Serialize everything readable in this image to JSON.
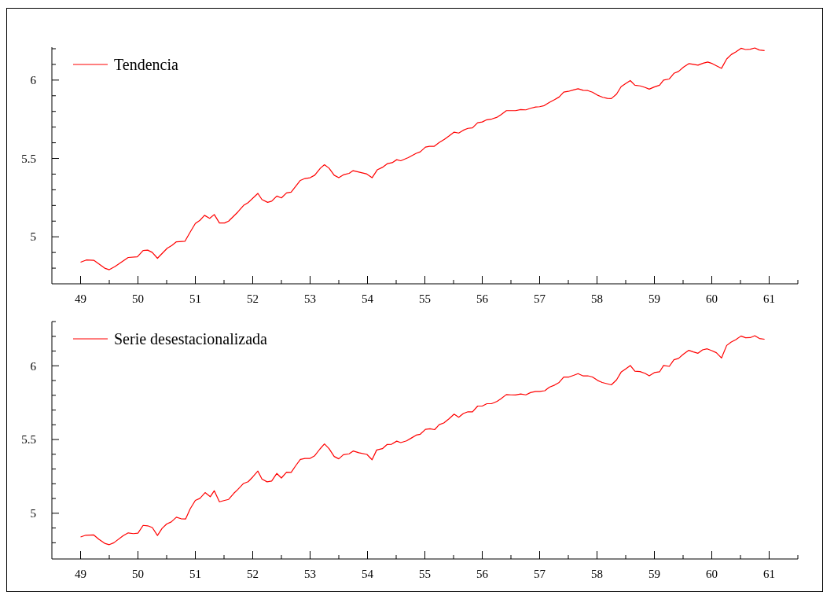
{
  "chart_data": [
    {
      "type": "line",
      "legend": "top left",
      "xlim": [
        48.5,
        61.5
      ],
      "ylim": [
        4.7,
        6.21
      ],
      "xticks": [
        49,
        {
          "value": 49.5,
          "label": null
        },
        50,
        {
          "value": 50.5,
          "label": null
        },
        51,
        {
          "value": 51.5,
          "label": null
        },
        52,
        {
          "value": 52.5,
          "label": null
        },
        53,
        {
          "value": 53.5,
          "label": null
        },
        54,
        {
          "value": 54.5,
          "label": null
        },
        55,
        {
          "value": 55.5,
          "label": null
        },
        56,
        {
          "value": 56.5,
          "label": null
        },
        57,
        {
          "value": 57.5,
          "label": null
        },
        58,
        {
          "value": 58.5,
          "label": null
        },
        59,
        {
          "value": 59.5,
          "label": null
        },
        60,
        {
          "value": 60.5,
          "label": null
        },
        61,
        {
          "value": 61.5,
          "label": null
        }
      ],
      "yticks": [
        {
          "value": 4.8,
          "label": null
        },
        {
          "value": 4.9,
          "label": null
        },
        5,
        {
          "value": 5.1,
          "label": null
        },
        {
          "value": 5.2,
          "label": null
        },
        {
          "value": 5.3,
          "label": null
        },
        {
          "value": 5.4,
          "label": null
        },
        5.5,
        {
          "value": 5.6,
          "label": null
        },
        {
          "value": 5.7,
          "label": null
        },
        {
          "value": 5.8,
          "label": null
        },
        {
          "value": 5.9,
          "label": null
        },
        6,
        {
          "value": 6.1,
          "label": null
        },
        {
          "value": 6.2,
          "label": null
        }
      ],
      "x": [
        49.0,
        49.1,
        49.23,
        49.42,
        49.5,
        49.6,
        49.83,
        49.99,
        50.09,
        50.17,
        50.25,
        50.34,
        50.51,
        50.59,
        50.67,
        50.82,
        50.91,
        51.0,
        51.08,
        51.16,
        51.25,
        51.33,
        51.42,
        51.51,
        51.58,
        51.74,
        51.84,
        51.92,
        52.09,
        52.16,
        52.26,
        52.33,
        52.42,
        52.5,
        52.59,
        52.67,
        52.83,
        52.91,
        53.0,
        53.08,
        53.18,
        53.25,
        53.33,
        53.42,
        53.5,
        53.59,
        53.68,
        53.75,
        53.98,
        54.08,
        54.17,
        54.26,
        54.35,
        54.43,
        54.51,
        54.58,
        54.71,
        54.85,
        54.92,
        55.01,
        55.08,
        55.16,
        55.25,
        55.34,
        55.42,
        55.51,
        55.59,
        55.67,
        55.75,
        55.83,
        55.92,
        56.0,
        56.08,
        56.17,
        56.26,
        56.33,
        56.42,
        56.58,
        56.67,
        56.76,
        56.84,
        56.93,
        57.0,
        57.08,
        57.17,
        57.26,
        57.34,
        57.42,
        57.5,
        57.59,
        57.67,
        57.76,
        57.84,
        57.92,
        58.02,
        58.1,
        58.18,
        58.25,
        58.34,
        58.42,
        58.5,
        58.58,
        58.66,
        58.75,
        58.84,
        58.91,
        58.99,
        59.09,
        59.16,
        59.26,
        59.34,
        59.42,
        59.51,
        59.6,
        59.68,
        59.76,
        59.85,
        59.93,
        60.01,
        60.09,
        60.17,
        60.26,
        60.34,
        60.42,
        60.51,
        60.59,
        60.67,
        60.75,
        60.83,
        60.92
      ],
      "series": [
        {
          "name": "Tendencia",
          "color": "#ff0000",
          "values": [
            4.838,
            4.852,
            4.85,
            4.8,
            4.79,
            4.81,
            4.868,
            4.872,
            4.913,
            4.915,
            4.9,
            4.863,
            4.927,
            4.945,
            4.968,
            4.972,
            5.03,
            5.085,
            5.105,
            5.137,
            5.118,
            5.142,
            5.088,
            5.088,
            5.1,
            5.158,
            5.2,
            5.218,
            5.277,
            5.238,
            5.22,
            5.227,
            5.26,
            5.248,
            5.28,
            5.285,
            5.36,
            5.372,
            5.377,
            5.393,
            5.438,
            5.46,
            5.438,
            5.393,
            5.377,
            5.397,
            5.405,
            5.422,
            5.402,
            5.377,
            5.427,
            5.443,
            5.467,
            5.473,
            5.492,
            5.485,
            5.505,
            5.533,
            5.542,
            5.572,
            5.577,
            5.577,
            5.602,
            5.622,
            5.643,
            5.668,
            5.662,
            5.68,
            5.692,
            5.695,
            5.728,
            5.733,
            5.747,
            5.752,
            5.763,
            5.78,
            5.805,
            5.805,
            5.812,
            5.81,
            5.82,
            5.828,
            5.83,
            5.837,
            5.858,
            5.875,
            5.892,
            5.923,
            5.928,
            5.937,
            5.945,
            5.935,
            5.933,
            5.923,
            5.902,
            5.89,
            5.883,
            5.882,
            5.91,
            5.958,
            5.978,
            5.997,
            5.967,
            5.963,
            5.953,
            5.942,
            5.955,
            5.967,
            6.0,
            6.007,
            6.043,
            6.055,
            6.083,
            6.105,
            6.1,
            6.095,
            6.108,
            6.115,
            6.105,
            6.09,
            6.075,
            6.135,
            6.163,
            6.18,
            6.203,
            6.195,
            6.197,
            6.205,
            6.192,
            6.188
          ]
        }
      ]
    },
    {
      "type": "line",
      "legend": "top left",
      "xlim": [
        48.5,
        61.5
      ],
      "ylim": [
        4.69,
        6.3
      ],
      "xticks": [
        49,
        {
          "value": 49.5,
          "label": null
        },
        50,
        {
          "value": 50.5,
          "label": null
        },
        51,
        {
          "value": 51.5,
          "label": null
        },
        52,
        {
          "value": 52.5,
          "label": null
        },
        53,
        {
          "value": 53.5,
          "label": null
        },
        54,
        {
          "value": 54.5,
          "label": null
        },
        55,
        {
          "value": 55.5,
          "label": null
        },
        56,
        {
          "value": 56.5,
          "label": null
        },
        57,
        {
          "value": 57.5,
          "label": null
        },
        58,
        {
          "value": 58.5,
          "label": null
        },
        59,
        {
          "value": 59.5,
          "label": null
        },
        60,
        {
          "value": 60.5,
          "label": null
        },
        61,
        {
          "value": 61.5,
          "label": null
        }
      ],
      "yticks": [
        {
          "value": 4.8,
          "label": null
        },
        {
          "value": 4.9,
          "label": null
        },
        5,
        {
          "value": 5.1,
          "label": null
        },
        {
          "value": 5.2,
          "label": null
        },
        {
          "value": 5.3,
          "label": null
        },
        {
          "value": 5.4,
          "label": null
        },
        5.5,
        {
          "value": 5.6,
          "label": null
        },
        {
          "value": 5.7,
          "label": null
        },
        {
          "value": 5.8,
          "label": null
        },
        {
          "value": 5.9,
          "label": null
        },
        6,
        {
          "value": 6.1,
          "label": null
        },
        {
          "value": 6.2,
          "label": null
        },
        {
          "value": 6.3,
          "label": null
        }
      ],
      "x": [
        49.0,
        49.09,
        49.23,
        49.32,
        49.42,
        49.5,
        49.58,
        49.74,
        49.83,
        49.92,
        50.0,
        50.09,
        50.17,
        50.25,
        50.34,
        50.42,
        50.5,
        50.58,
        50.67,
        50.75,
        50.83,
        50.91,
        51.0,
        51.08,
        51.17,
        51.26,
        51.33,
        51.42,
        51.51,
        51.58,
        51.67,
        51.74,
        51.84,
        51.92,
        52.0,
        52.09,
        52.16,
        52.25,
        52.33,
        52.42,
        52.5,
        52.59,
        52.67,
        52.75,
        52.83,
        52.91,
        53.0,
        53.08,
        53.17,
        53.25,
        53.33,
        53.42,
        53.5,
        53.58,
        53.68,
        53.75,
        53.85,
        53.99,
        54.08,
        54.16,
        54.26,
        54.34,
        54.42,
        54.51,
        54.58,
        54.68,
        54.76,
        54.85,
        54.92,
        55.01,
        55.09,
        55.17,
        55.25,
        55.33,
        55.42,
        55.51,
        55.59,
        55.67,
        55.75,
        55.83,
        55.92,
        56.0,
        56.08,
        56.16,
        56.26,
        56.33,
        56.42,
        56.5,
        56.58,
        56.67,
        56.76,
        56.84,
        56.93,
        57.0,
        57.09,
        57.17,
        57.26,
        57.34,
        57.42,
        57.51,
        57.59,
        57.67,
        57.76,
        57.84,
        57.92,
        58.01,
        58.09,
        58.17,
        58.25,
        58.34,
        58.42,
        58.5,
        58.58,
        58.66,
        58.75,
        58.84,
        58.91,
        59.0,
        59.09,
        59.16,
        59.26,
        59.34,
        59.42,
        59.51,
        59.6,
        59.68,
        59.76,
        59.84,
        59.92,
        60.0,
        60.08,
        60.17,
        60.26,
        60.34,
        60.42,
        60.51,
        60.59,
        60.67,
        60.75,
        60.83,
        60.92
      ],
      "series": [
        {
          "name": "Serie desestacionalizada",
          "color": "#ff0000",
          "values": [
            4.839,
            4.851,
            4.853,
            4.823,
            4.796,
            4.787,
            4.8,
            4.847,
            4.867,
            4.862,
            4.865,
            4.918,
            4.915,
            4.903,
            4.849,
            4.897,
            4.927,
            4.941,
            4.973,
            4.963,
            4.961,
            5.03,
            5.087,
            5.101,
            5.14,
            5.112,
            5.153,
            5.078,
            5.087,
            5.094,
            5.135,
            5.161,
            5.202,
            5.214,
            5.246,
            5.286,
            5.232,
            5.213,
            5.218,
            5.27,
            5.239,
            5.278,
            5.277,
            5.323,
            5.365,
            5.372,
            5.372,
            5.39,
            5.435,
            5.47,
            5.438,
            5.385,
            5.369,
            5.397,
            5.403,
            5.422,
            5.41,
            5.399,
            5.363,
            5.429,
            5.438,
            5.466,
            5.468,
            5.489,
            5.479,
            5.491,
            5.509,
            5.53,
            5.536,
            5.569,
            5.573,
            5.567,
            5.601,
            5.612,
            5.64,
            5.672,
            5.651,
            5.676,
            5.688,
            5.688,
            5.727,
            5.727,
            5.743,
            5.743,
            5.759,
            5.778,
            5.805,
            5.803,
            5.802,
            5.809,
            5.803,
            5.818,
            5.826,
            5.826,
            5.831,
            5.855,
            5.869,
            5.887,
            5.924,
            5.924,
            5.935,
            5.947,
            5.931,
            5.932,
            5.924,
            5.901,
            5.887,
            5.879,
            5.871,
            5.904,
            5.957,
            5.979,
            6.002,
            5.963,
            5.961,
            5.948,
            5.932,
            5.954,
            5.959,
            6.002,
            5.996,
            6.041,
            6.05,
            6.08,
            6.105,
            6.094,
            6.085,
            6.108,
            6.115,
            6.103,
            6.089,
            6.053,
            6.138,
            6.161,
            6.177,
            6.202,
            6.19,
            6.191,
            6.204,
            6.185,
            6.18
          ]
        }
      ]
    }
  ]
}
